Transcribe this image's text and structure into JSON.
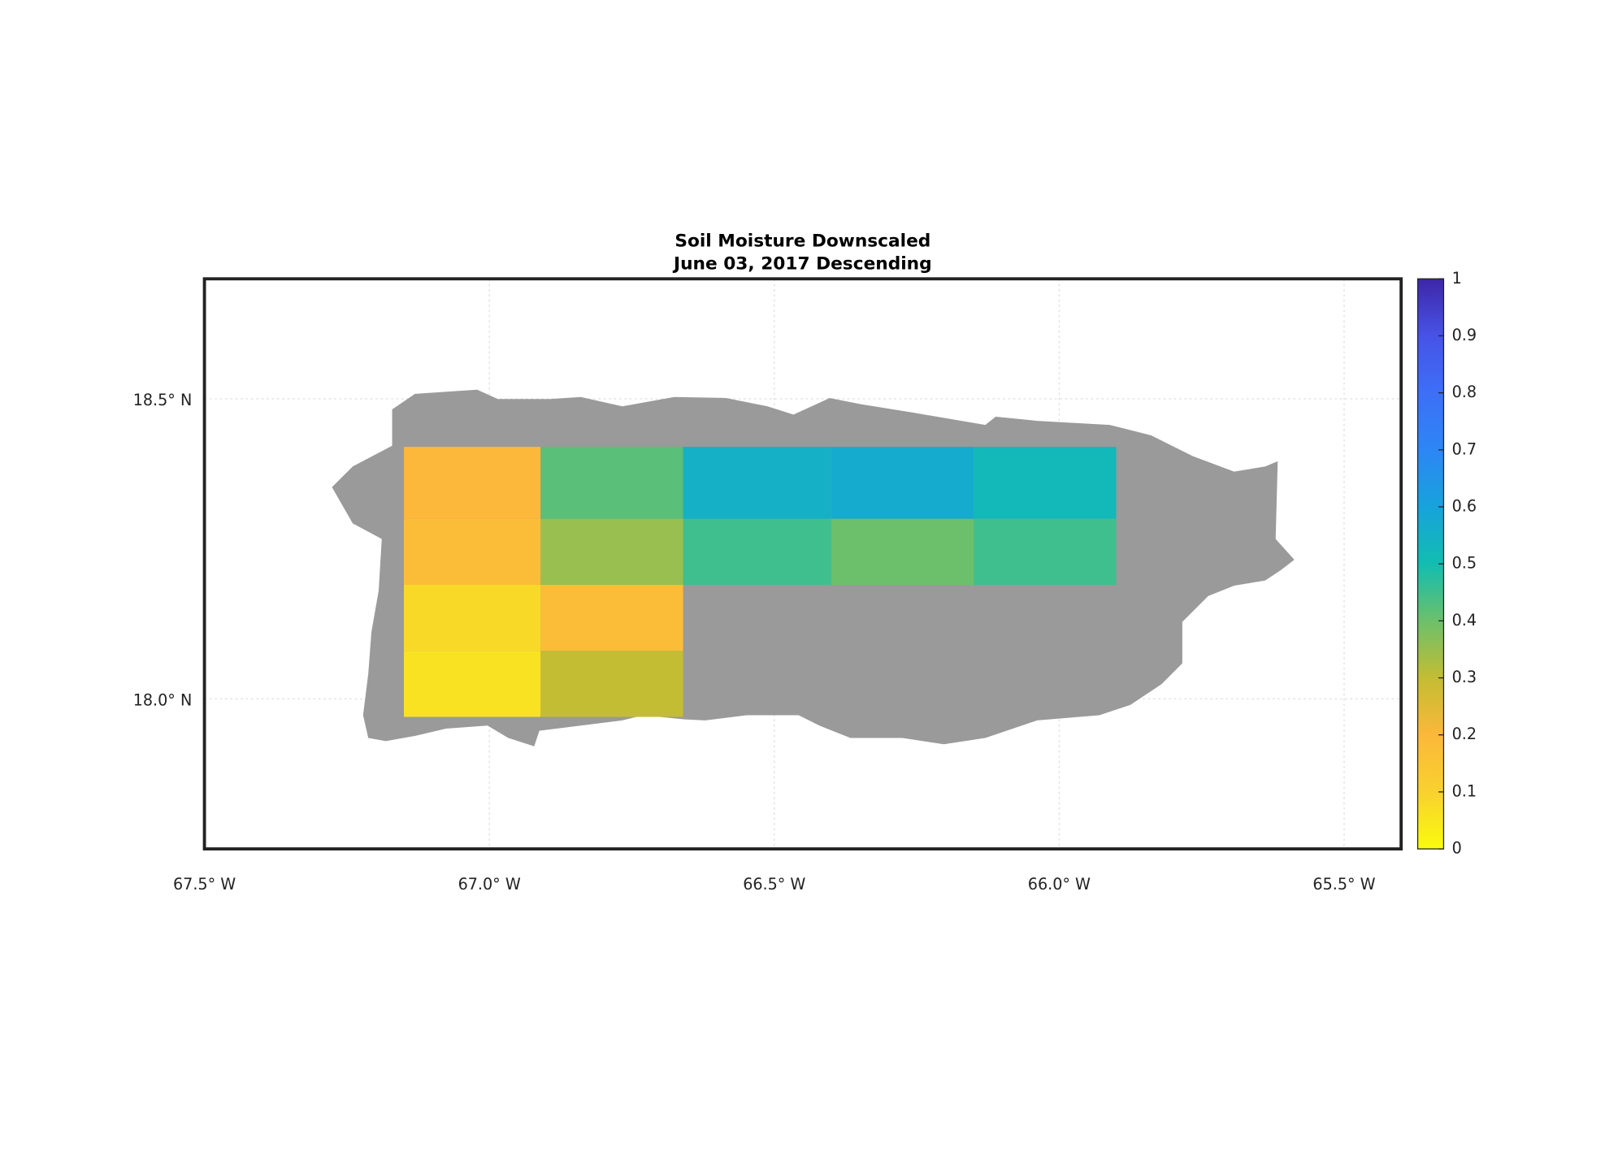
{
  "chart_data": {
    "type": "heatmap",
    "title": "Soil Moisture Downscaled",
    "subtitle": "June 03, 2017 Descending",
    "xlim": [
      -67.5,
      -65.4
    ],
    "ylim": [
      17.75,
      18.7
    ],
    "xticks": [
      {
        "value": -67.5,
        "label": "67.5° W"
      },
      {
        "value": -67.0,
        "label": "67.0° W"
      },
      {
        "value": -66.5,
        "label": "66.5° W"
      },
      {
        "value": -66.0,
        "label": "66.0° W"
      },
      {
        "value": -65.5,
        "label": "65.5° W"
      }
    ],
    "yticks": [
      {
        "value": 18.0,
        "label": "18.0° N"
      },
      {
        "value": 18.5,
        "label": "18.5° N"
      }
    ],
    "grid": true,
    "x_edges": [
      -67.15,
      -66.91,
      -66.66,
      -66.4,
      -66.15,
      -65.9
    ],
    "y_edges": [
      18.42,
      18.3,
      18.19,
      18.08,
      17.97
    ],
    "values": [
      [
        0.2,
        0.42,
        0.55,
        0.57,
        0.52
      ],
      [
        0.18,
        0.35,
        0.45,
        0.4,
        0.45
      ],
      [
        0.08,
        0.18,
        null,
        null,
        null
      ],
      [
        0.06,
        0.3,
        null,
        null,
        null
      ]
    ],
    "clim": [
      0,
      1
    ],
    "cticks": [
      0,
      0.1,
      0.2,
      0.3,
      0.4,
      0.5,
      0.6,
      0.7,
      0.8,
      0.9,
      1
    ],
    "colormap": [
      "#f9fb0e",
      "#f9d12f",
      "#fbb83a",
      "#c3bd33",
      "#6cc06b",
      "#12bdb0",
      "#17a3dc",
      "#2d86f5",
      "#3d6ff7",
      "#4753e6",
      "#3e26a8"
    ]
  }
}
